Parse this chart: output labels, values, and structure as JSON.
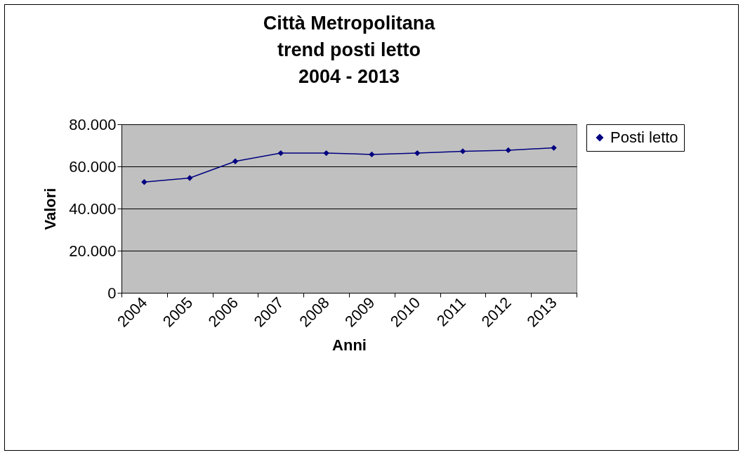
{
  "chart_data": {
    "type": "line",
    "title": "Città Metropolitana\ntrend posti letto\n2004 - 2013",
    "xlabel": "Anni",
    "ylabel": "Valori",
    "categories": [
      "2004",
      "2005",
      "2006",
      "2007",
      "2008",
      "2009",
      "2010",
      "2011",
      "2012",
      "2013"
    ],
    "series": [
      {
        "name": "Posti letto",
        "color": "#000080",
        "values": [
          52600,
          54500,
          62400,
          66300,
          66300,
          65700,
          66300,
          67200,
          67700,
          68800
        ]
      }
    ],
    "ylim": [
      0,
      80000
    ],
    "yticks": [
      {
        "value": 0,
        "label": "0"
      },
      {
        "value": 20000,
        "label": "20.000"
      },
      {
        "value": 40000,
        "label": "40.000"
      },
      {
        "value": 60000,
        "label": "60.000"
      },
      {
        "value": 80000,
        "label": "80.000"
      }
    ],
    "grid": "y",
    "legend": "right",
    "marker": "diamond",
    "line_style": "solid"
  }
}
